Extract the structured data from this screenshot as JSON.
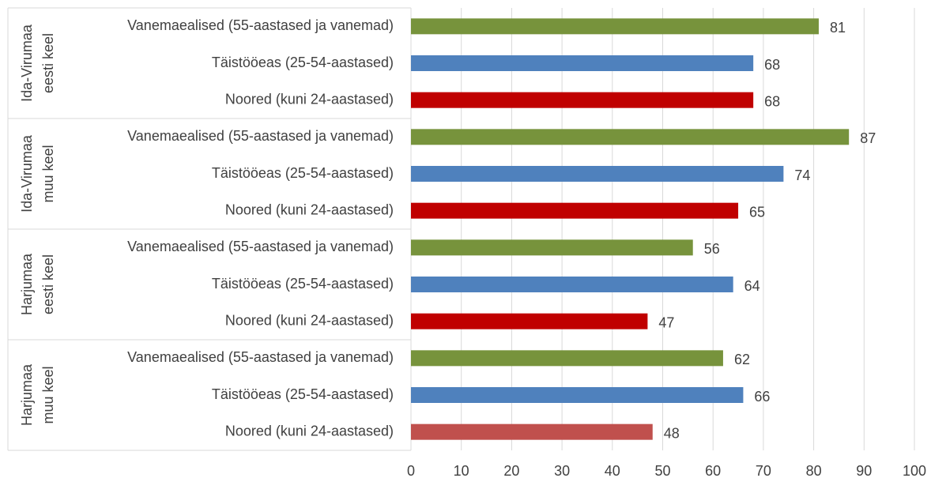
{
  "chart_data": {
    "type": "bar",
    "orientation": "horizontal",
    "xlim": [
      0,
      100
    ],
    "xticks": [
      0,
      10,
      20,
      30,
      40,
      50,
      60,
      70,
      80,
      90,
      100
    ],
    "grid": true,
    "groups": [
      {
        "name": [
          "Ida-Virumaa",
          "eesti keel"
        ],
        "categories": [
          "Vanemaealised (55-aastased ja vanemad)",
          "Täistööeas (25-54-aastased)",
          "Noored (kuni 24-aastased)"
        ],
        "values": [
          81,
          68,
          68
        ],
        "colors": [
          "#77933c",
          "#4f81bd",
          "#c00000"
        ]
      },
      {
        "name": [
          "Ida-Virumaa",
          "muu keel"
        ],
        "categories": [
          "Vanemaealised (55-aastased ja vanemad)",
          "Täistööeas (25-54-aastased)",
          "Noored (kuni 24-aastased)"
        ],
        "values": [
          87,
          74,
          65
        ],
        "colors": [
          "#77933c",
          "#4f81bd",
          "#c00000"
        ]
      },
      {
        "name": [
          "Harjumaa",
          "eesti keel"
        ],
        "categories": [
          "Vanemaealised (55-aastased ja vanemad)",
          "Täistööeas (25-54-aastased)",
          "Noored (kuni 24-aastased)"
        ],
        "values": [
          56,
          64,
          47
        ],
        "colors": [
          "#77933c",
          "#4f81bd",
          "#c00000"
        ]
      },
      {
        "name": [
          "Harjumaa",
          "muu keel"
        ],
        "categories": [
          "Vanemaealised (55-aastased ja vanemad)",
          "Täistööeas (25-54-aastased)",
          "Noored (kuni 24-aastased)"
        ],
        "values": [
          62,
          66,
          48
        ],
        "colors": [
          "#77933c",
          "#4f81bd",
          "#c0504d"
        ]
      }
    ]
  }
}
